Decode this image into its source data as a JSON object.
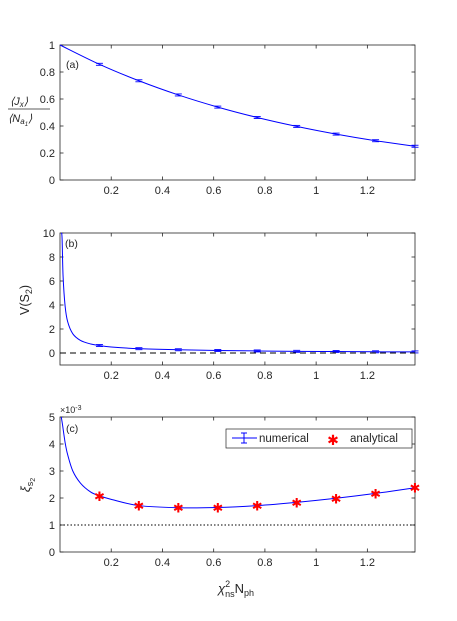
{
  "chart_data": [
    {
      "panel": "(a)",
      "type": "line",
      "ylabel_num": "⟨J",
      "ylabel_num_sub": "x",
      "ylabel_den": "⟨N",
      "ylabel_den_sub": "a",
      "ylabel_den_subsub": "1",
      "xlim": [
        0,
        1.386
      ],
      "ylim": [
        0,
        1
      ],
      "xticks": [
        "0.2",
        "0.4",
        "0.6",
        "0.8",
        "1",
        "1.2"
      ],
      "xtick_values": [
        0.2,
        0.4,
        0.6,
        0.8,
        1.0,
        1.2
      ],
      "yticks": [
        "0",
        "0.2",
        "0.4",
        "0.6",
        "0.8",
        "1"
      ],
      "ytick_values": [
        0,
        0.2,
        0.4,
        0.6,
        0.8,
        1.0
      ],
      "series": [
        {
          "color": "#0000ff",
          "style": "solid",
          "x": [
            0,
            0.154,
            0.308,
            0.462,
            0.616,
            0.77,
            0.924,
            1.078,
            1.232,
            1.386
          ],
          "y": [
            1.0,
            0.857,
            0.735,
            0.63,
            0.54,
            0.463,
            0.397,
            0.34,
            0.291,
            0.25
          ],
          "errorbars": true
        }
      ]
    },
    {
      "panel": "(b)",
      "type": "line",
      "ylabel": "V(S",
      "ylabel_sub": "2",
      "ylabel_end": ")",
      "xlim": [
        0,
        1.386
      ],
      "ylim": [
        -1,
        10
      ],
      "xticks": [
        "0.2",
        "0.4",
        "0.6",
        "0.8",
        "1",
        "1.2"
      ],
      "xtick_values": [
        0.2,
        0.4,
        0.6,
        0.8,
        1.0,
        1.2
      ],
      "yticks": [
        "0",
        "2",
        "4",
        "6",
        "8",
        "10"
      ],
      "ytick_values": [
        0,
        2,
        4,
        6,
        8,
        10
      ],
      "series": [
        {
          "color": "#0000ff",
          "style": "solid",
          "x": [
            0.005,
            0.008,
            0.012,
            0.02,
            0.03,
            0.05,
            0.08,
            0.12,
            0.154,
            0.2,
            0.308,
            0.462,
            0.616,
            0.77,
            0.924,
            1.078,
            1.232,
            1.386
          ],
          "y": [
            10,
            9.6,
            6.4,
            3.9,
            2.6,
            1.6,
            1.05,
            0.75,
            0.62,
            0.5,
            0.36,
            0.27,
            0.21,
            0.17,
            0.14,
            0.12,
            0.1,
            0.09
          ],
          "errorbars": true
        },
        {
          "color": "#000000",
          "style": "dashed",
          "x": [
            0,
            1.386
          ],
          "y": [
            0,
            0
          ]
        }
      ]
    },
    {
      "panel": "(c)",
      "type": "line",
      "ylabel": "ξ",
      "ylabel_sub": "s",
      "ylabel_subsub": "2",
      "exponent": "×10",
      "exponent_power": "-3",
      "xlabel": "χ",
      "xlabel_sup": "2",
      "xlabel_sub": "ns",
      "xlabel_mid": "N",
      "xlabel_sub2": "ph",
      "xlim": [
        0,
        1.386
      ],
      "ylim": [
        0,
        5
      ],
      "xticks": [
        "0.2",
        "0.4",
        "0.6",
        "0.8",
        "1",
        "1.2"
      ],
      "xtick_values": [
        0.2,
        0.4,
        0.6,
        0.8,
        1.0,
        1.2
      ],
      "yticks": [
        "0",
        "1",
        "2",
        "3",
        "4",
        "5"
      ],
      "ytick_values": [
        0,
        1,
        2,
        3,
        4,
        5
      ],
      "legend_position": "top-right",
      "series": [
        {
          "name": "numerical",
          "color": "#0000ff",
          "style": "solid",
          "x": [
            0.005,
            0.01,
            0.02,
            0.03,
            0.05,
            0.08,
            0.12,
            0.154,
            0.2,
            0.308,
            0.462,
            0.616,
            0.77,
            0.924,
            1.078,
            1.232,
            1.386
          ],
          "y": [
            5.0,
            4.7,
            4.05,
            3.6,
            3.0,
            2.55,
            2.22,
            2.08,
            1.95,
            1.72,
            1.64,
            1.65,
            1.72,
            1.84,
            1.99,
            2.17,
            2.38
          ]
        },
        {
          "name": "analytical",
          "color": "#ff0000",
          "style": "markers",
          "x": [
            0.154,
            0.308,
            0.462,
            0.616,
            0.77,
            0.924,
            1.078,
            1.232,
            1.386
          ],
          "y": [
            2.08,
            1.72,
            1.64,
            1.65,
            1.72,
            1.84,
            1.99,
            2.17,
            2.38
          ]
        },
        {
          "color": "#000000",
          "style": "dotted",
          "x": [
            0,
            1.386
          ],
          "y": [
            1,
            1
          ]
        }
      ]
    }
  ],
  "labels": {
    "a_panel": "(a)",
    "b_panel": "(b)",
    "c_panel": "(c)",
    "legend_numerical": "numerical",
    "legend_analytical": "analytical"
  }
}
